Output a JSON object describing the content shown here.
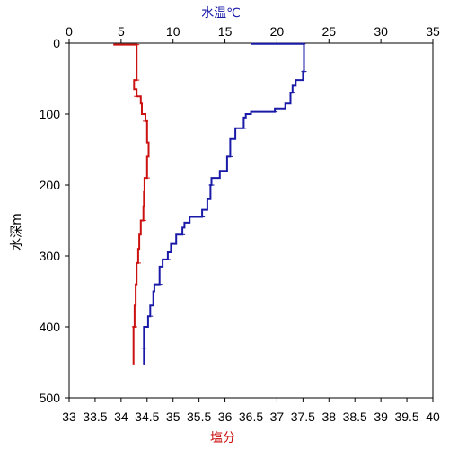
{
  "chart_data": {
    "type": "line",
    "title": "",
    "colors": {
      "temperature": "#1a1aa8",
      "salinity": "#cc1111",
      "axis": "#000000"
    },
    "top_axis": {
      "label": "水温℃",
      "range": [
        0,
        35
      ],
      "ticks": [
        "0",
        "5",
        "10",
        "15",
        "20",
        "25",
        "30",
        "35"
      ]
    },
    "bottom_axis": {
      "label": "塩分",
      "range": [
        33,
        40
      ],
      "ticks": [
        "33",
        "33.5",
        "34",
        "34.5",
        "35",
        "35.5",
        "36",
        "36.5",
        "37",
        "37.5",
        "38",
        "38.5",
        "39",
        "39.5",
        "40"
      ]
    },
    "left_axis": {
      "label": "水深m",
      "range": [
        0,
        500
      ],
      "reversed": true,
      "ticks": [
        "0",
        "100",
        "200",
        "300",
        "400",
        "500"
      ]
    },
    "grid": false,
    "series": [
      {
        "key": "temperature",
        "axis": "top",
        "points": [
          [
            17.5,
            1
          ],
          [
            22.5,
            1
          ],
          [
            22.6,
            3
          ],
          [
            22.6,
            20
          ],
          [
            22.6,
            40
          ],
          [
            22.5,
            52
          ],
          [
            21.8,
            60
          ],
          [
            21.5,
            70
          ],
          [
            21.3,
            85
          ],
          [
            20.8,
            92
          ],
          [
            19.8,
            97
          ],
          [
            17.5,
            100
          ],
          [
            17.0,
            105
          ],
          [
            16.8,
            120
          ],
          [
            16.0,
            135
          ],
          [
            15.5,
            145
          ],
          [
            15.5,
            160
          ],
          [
            15.2,
            180
          ],
          [
            14.5,
            190
          ],
          [
            13.7,
            200
          ],
          [
            13.6,
            220
          ],
          [
            13.3,
            235
          ],
          [
            12.8,
            245
          ],
          [
            11.6,
            253
          ],
          [
            11.1,
            260
          ],
          [
            10.9,
            270
          ],
          [
            10.3,
            283
          ],
          [
            9.8,
            295
          ],
          [
            9.5,
            305
          ],
          [
            9.0,
            315
          ],
          [
            8.7,
            325
          ],
          [
            8.7,
            340
          ],
          [
            8.2,
            350
          ],
          [
            8.1,
            370
          ],
          [
            7.8,
            385
          ],
          [
            7.6,
            400
          ],
          [
            7.2,
            412
          ],
          [
            7.2,
            430
          ],
          [
            7.2,
            453
          ]
        ]
      },
      {
        "key": "salinity",
        "axis": "bottom",
        "points": [
          [
            33.85,
            2
          ],
          [
            34.3,
            2
          ],
          [
            34.3,
            5
          ],
          [
            34.3,
            30
          ],
          [
            34.3,
            52
          ],
          [
            34.25,
            55
          ],
          [
            34.25,
            65
          ],
          [
            34.3,
            75
          ],
          [
            34.38,
            85
          ],
          [
            34.4,
            100
          ],
          [
            34.47,
            110
          ],
          [
            34.5,
            140
          ],
          [
            34.53,
            160
          ],
          [
            34.5,
            190
          ],
          [
            34.45,
            210
          ],
          [
            34.44,
            230
          ],
          [
            34.43,
            250
          ],
          [
            34.38,
            270
          ],
          [
            34.35,
            290
          ],
          [
            34.33,
            310
          ],
          [
            34.3,
            340
          ],
          [
            34.28,
            370
          ],
          [
            34.26,
            400
          ],
          [
            34.24,
            430
          ],
          [
            34.24,
            453
          ]
        ]
      }
    ]
  }
}
